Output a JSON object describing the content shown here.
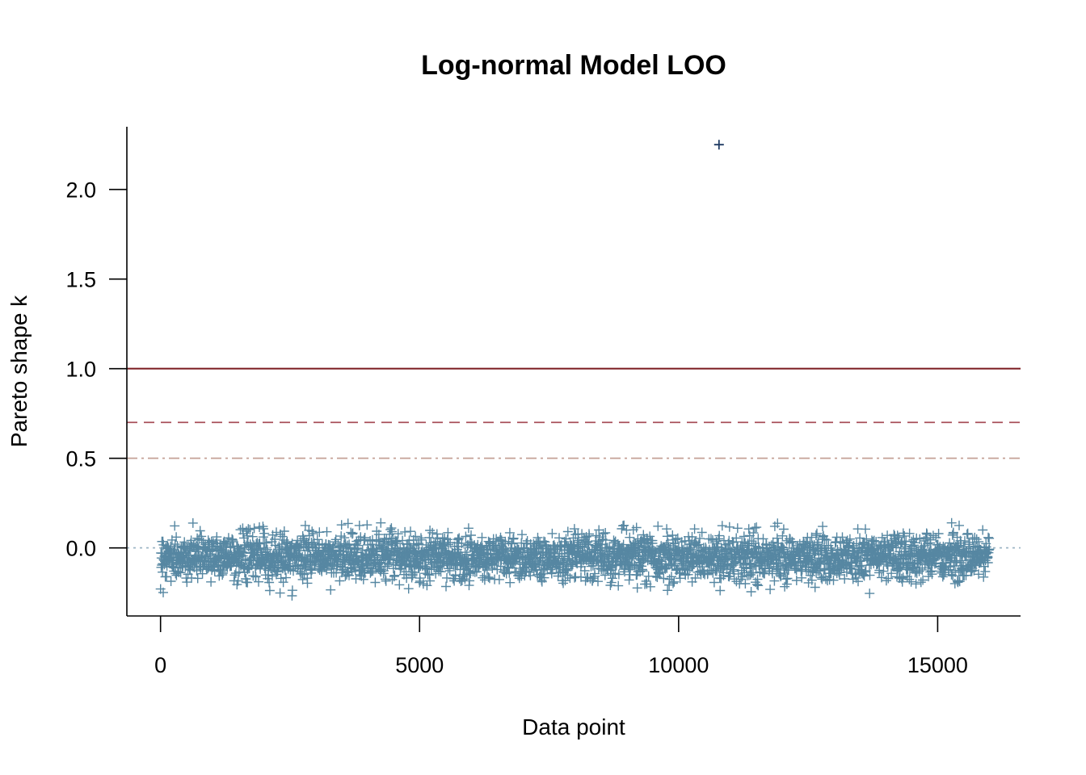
{
  "chart_data": {
    "type": "scatter",
    "title": "Log-normal Model LOO",
    "xlabel": "Data point",
    "ylabel": "Pareto shape k",
    "xlim": [
      -650,
      16600
    ],
    "ylim": [
      -0.38,
      2.35
    ],
    "xticks": [
      0,
      5000,
      10000,
      15000
    ],
    "yticks": [
      0.0,
      0.5,
      1.0,
      1.5,
      2.0
    ],
    "ytick_labels": [
      "0.0",
      "0.5",
      "1.0",
      "1.5",
      "2.0"
    ],
    "n_points": 16000,
    "marker": "+",
    "bulk_range": [
      -0.28,
      0.14
    ],
    "outliers": [
      {
        "x": 10780,
        "y": 2.25,
        "color": "#1f3b63"
      }
    ],
    "reference_lines": [
      {
        "y": 0.0,
        "style": "dotted",
        "color": "#9db6c4"
      },
      {
        "y": 0.5,
        "style": "dashdot",
        "color": "#c4a096"
      },
      {
        "y": 0.7,
        "style": "dashed",
        "color": "#a8505a"
      },
      {
        "y": 1.0,
        "style": "solid",
        "color": "#7a1a1f"
      }
    ],
    "colors": {
      "points": "#5687a2",
      "outlier": "#1f3b63"
    },
    "grid": false
  }
}
